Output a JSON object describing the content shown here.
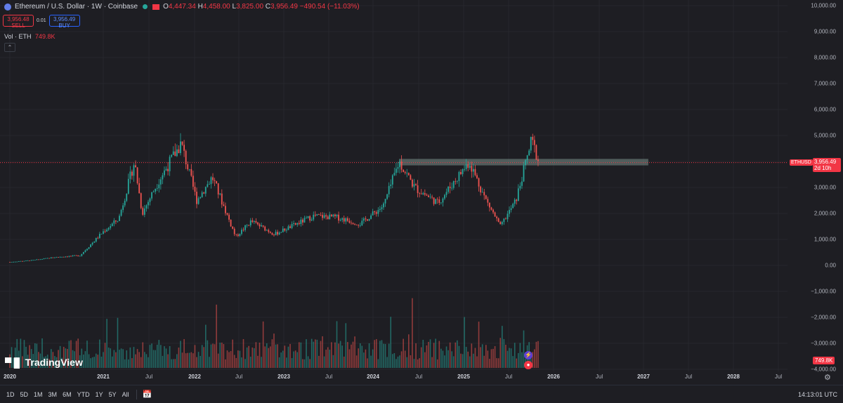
{
  "header": {
    "symbol_title": "Ethereum / U.S. Dollar · 1W · Coinbase",
    "ohlc": [
      {
        "key": "O",
        "value": "4,447.34"
      },
      {
        "key": "H",
        "value": "4,458.00"
      },
      {
        "key": "L",
        "value": "3,825.00"
      },
      {
        "key": "C",
        "value": "3,956.49"
      }
    ],
    "change": "−490.54 (−11.03%)"
  },
  "trade": {
    "sell_price": "3,956.48",
    "sell_label": "SELL",
    "spread": "0.01",
    "buy_price": "3,956.49",
    "buy_label": "BUY"
  },
  "volume_legend": {
    "label": "Vol · ETH",
    "value": "749.8K"
  },
  "collapse_icon": "chevron-up-icon",
  "price_axis": {
    "labels": [
      "10,000.00",
      "9,000.00",
      "8,000.00",
      "7,000.00",
      "6,000.00",
      "5,000.00",
      "4,000.00",
      "3,000.00",
      "2,000.00",
      "1,000.00",
      "0.00",
      "−1,000.00",
      "−2,000.00",
      "−3,000.00",
      "−4,000.00"
    ],
    "values": [
      10000,
      9000,
      8000,
      7000,
      6000,
      5000,
      4000,
      3000,
      2000,
      1000,
      0,
      -1000,
      -2000,
      -3000,
      -4000
    ],
    "current_price": "3,956.49",
    "countdown": "2d 10h",
    "symbol_tag": "ETHUSD",
    "volume_tag": "749.8K"
  },
  "time_axis": {
    "labels": [
      {
        "text": "2020",
        "year": true
      },
      {
        "text": "2021",
        "year": true
      },
      {
        "text": "Jul",
        "year": false
      },
      {
        "text": "2022",
        "year": true
      },
      {
        "text": "Jul",
        "year": false
      },
      {
        "text": "2023",
        "year": true
      },
      {
        "text": "Jul",
        "year": false
      },
      {
        "text": "2024",
        "year": true
      },
      {
        "text": "Jul",
        "year": false
      },
      {
        "text": "2025",
        "year": true
      },
      {
        "text": "Jul",
        "year": false
      },
      {
        "text": "2026",
        "year": true
      },
      {
        "text": "Jul",
        "year": false
      },
      {
        "text": "2027",
        "year": true
      },
      {
        "text": "Jul",
        "year": false
      },
      {
        "text": "2028",
        "year": true
      },
      {
        "text": "Jul",
        "year": false
      }
    ]
  },
  "watermark": "TradingView",
  "bottom_bar": {
    "ranges": [
      "1D",
      "5D",
      "1M",
      "3M",
      "6M",
      "YTD",
      "1Y",
      "5Y",
      "All"
    ],
    "calendar_icon": "calendar-range-icon",
    "clock": "14:13:01 UTC"
  },
  "colors": {
    "up": "#26a69a",
    "down": "#ef5350",
    "zone": "#7a8f8a",
    "background": "#1e1e23"
  },
  "chart_data": {
    "type": "candlestick",
    "timeframe": "1W",
    "price_range": [
      -4000,
      10000
    ],
    "resistance_zone": [
      3850,
      4100
    ],
    "current_price": 3956.49,
    "price_path": [
      {
        "date": "2020-01",
        "close": 130
      },
      {
        "date": "2020-04",
        "close": 200
      },
      {
        "date": "2020-07",
        "close": 320
      },
      {
        "date": "2020-10",
        "close": 380
      },
      {
        "date": "2021-01",
        "close": 1300
      },
      {
        "date": "2021-03",
        "close": 1800
      },
      {
        "date": "2021-05",
        "close": 4000
      },
      {
        "date": "2021-06",
        "close": 2000
      },
      {
        "date": "2021-08",
        "close": 3200
      },
      {
        "date": "2021-11",
        "close": 4700
      },
      {
        "date": "2022-01",
        "close": 2500
      },
      {
        "date": "2022-03",
        "close": 3400
      },
      {
        "date": "2022-06",
        "close": 1100
      },
      {
        "date": "2022-08",
        "close": 1700
      },
      {
        "date": "2022-11",
        "close": 1200
      },
      {
        "date": "2023-04",
        "close": 1900
      },
      {
        "date": "2023-07",
        "close": 1850
      },
      {
        "date": "2023-10",
        "close": 1600
      },
      {
        "date": "2024-01",
        "close": 2300
      },
      {
        "date": "2024-03",
        "close": 4000
      },
      {
        "date": "2024-05",
        "close": 3000
      },
      {
        "date": "2024-08",
        "close": 2400
      },
      {
        "date": "2024-12",
        "close": 4000
      },
      {
        "date": "2025-02",
        "close": 2600
      },
      {
        "date": "2025-04",
        "close": 1500
      },
      {
        "date": "2025-06",
        "close": 2500
      },
      {
        "date": "2025-08",
        "close": 4800
      },
      {
        "date": "2025-09",
        "close": 3956
      }
    ]
  }
}
